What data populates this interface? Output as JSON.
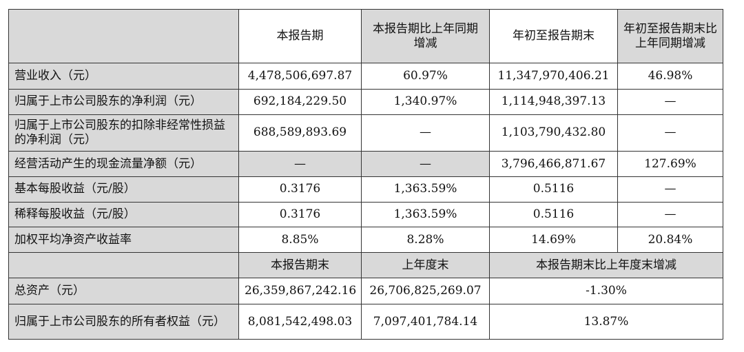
{
  "columns": {
    "current": "本报告期",
    "current_yoy": "本报告期比上年同期增减",
    "ytd": "年初至报告期末",
    "ytd_yoy": "年初至报告期末比上年同期增减"
  },
  "rows": [
    {
      "label": "营业收入（元）",
      "current": "4,478,506,697.87",
      "current_yoy": "60.97%",
      "ytd": "11,347,970,406.21",
      "ytd_yoy": "46.98%"
    },
    {
      "label": "归属于上市公司股东的净利润（元）",
      "current": "692,184,229.50",
      "current_yoy": "1,340.97%",
      "ytd": "1,114,948,397.13",
      "ytd_yoy": "—"
    },
    {
      "label": "归属于上市公司股东的扣除非经常性损益的净利润（元）",
      "current": "688,589,893.69",
      "current_yoy": "—",
      "ytd": "1,103,790,432.80",
      "ytd_yoy": "—"
    },
    {
      "label": "经营活动产生的现金流量净额（元）",
      "current": "—",
      "current_yoy": "—",
      "ytd": "3,796,466,871.67",
      "ytd_yoy": "127.69%"
    },
    {
      "label": "基本每股收益（元/股）",
      "current": "0.3176",
      "current_yoy": "1,363.59%",
      "ytd": "0.5116",
      "ytd_yoy": "—"
    },
    {
      "label": "稀释每股收益（元/股）",
      "current": "0.3176",
      "current_yoy": "1,363.59%",
      "ytd": "0.5116",
      "ytd_yoy": "—"
    },
    {
      "label": "加权平均净资产收益率",
      "current": "8.85%",
      "current_yoy": "8.28%",
      "ytd": "14.69%",
      "ytd_yoy": "20.84%"
    }
  ],
  "balance_columns": {
    "period_end": "本报告期末",
    "prior_year_end": "上年度末",
    "change": "本报告期末比上年度末增减"
  },
  "balance_rows": [
    {
      "label": "总资产（元）",
      "period_end": "26,359,867,242.16",
      "prior_year_end": "26,706,825,269.07",
      "change": "-1.30%"
    },
    {
      "label": "归属于上市公司股东的所有者权益（元）",
      "period_end": "8,081,542,498.03",
      "prior_year_end": "7,097,401,784.14",
      "change": "13.87%"
    }
  ]
}
